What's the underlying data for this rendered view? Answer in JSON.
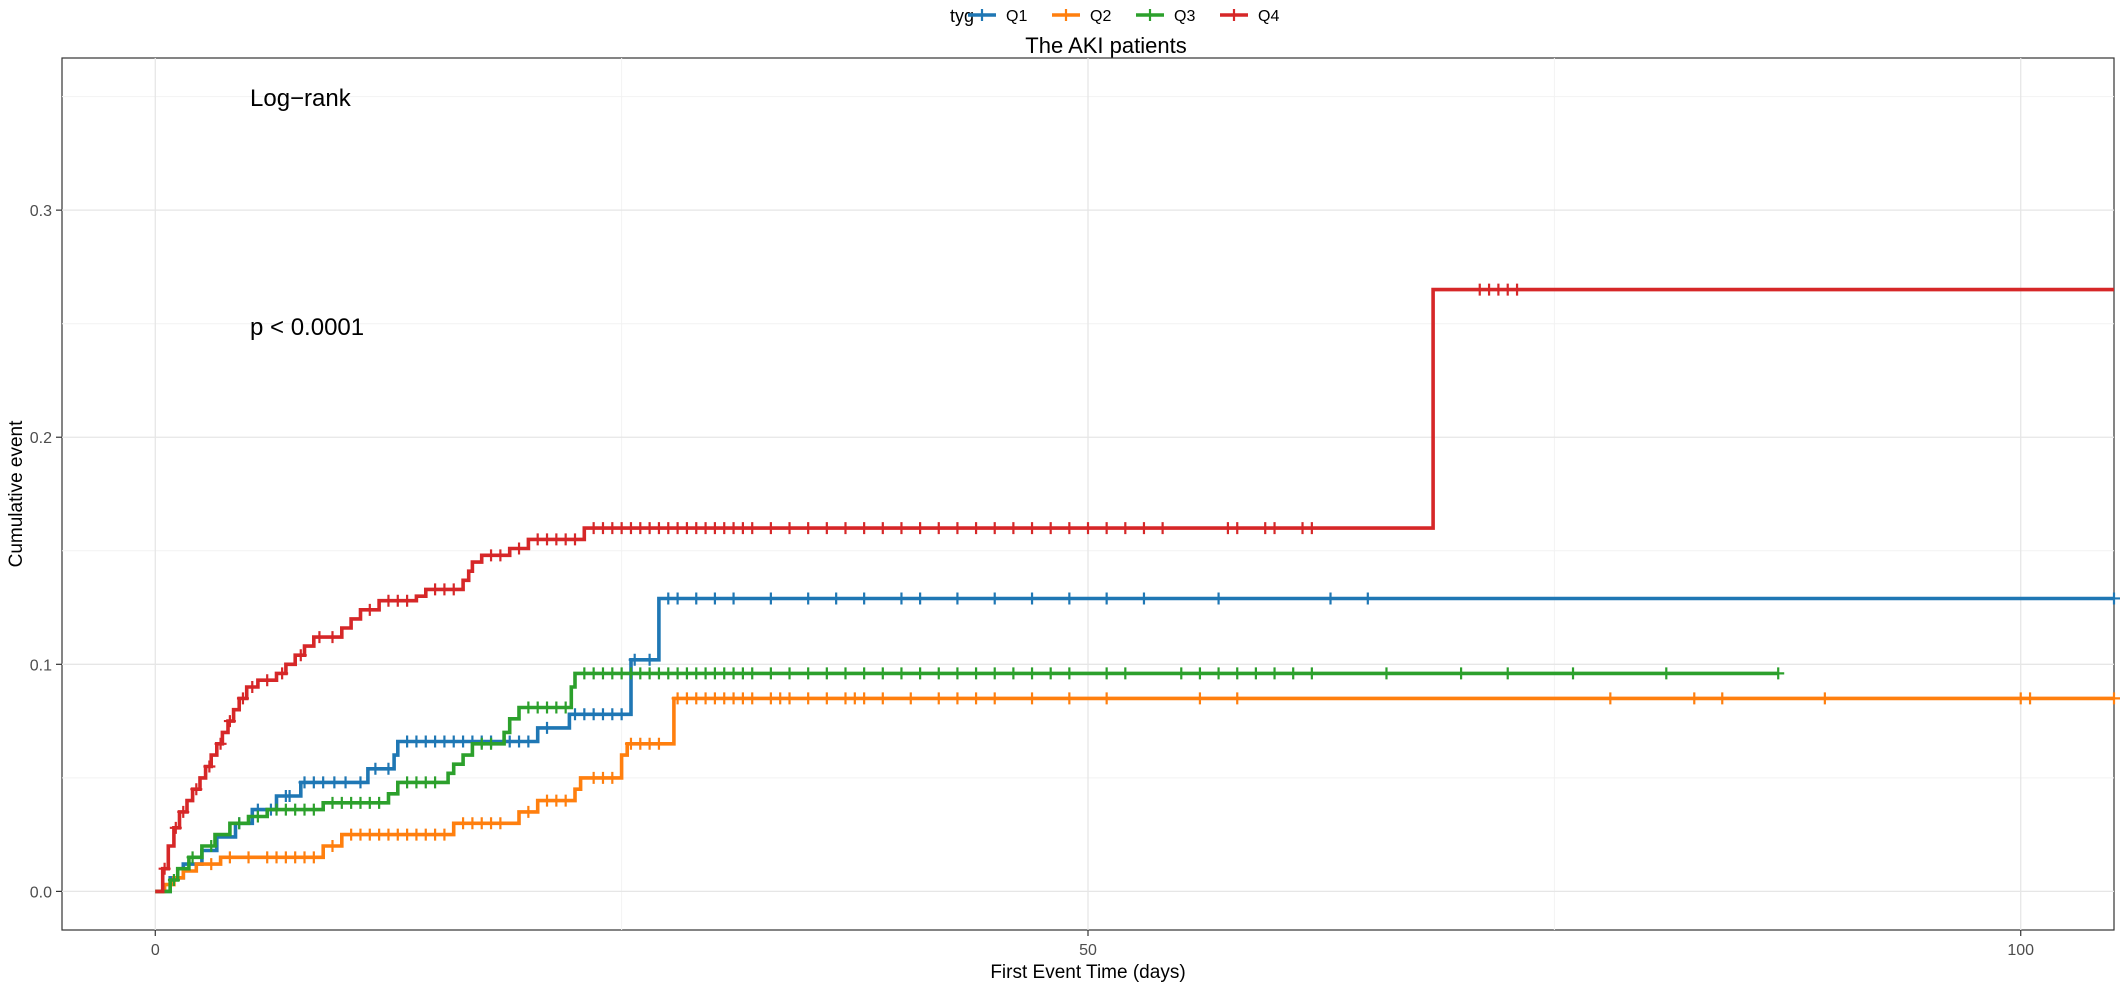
{
  "chart_data": {
    "type": "line",
    "title": "The AKI patients",
    "xlabel": "First Event Time (days)",
    "ylabel": "Cumulative event",
    "xlim": [
      -5,
      105
    ],
    "ylim": [
      -0.017,
      0.367
    ],
    "x_ticks": [
      0,
      50,
      100
    ],
    "x_tick_labels": [
      "0",
      "50",
      "100"
    ],
    "y_ticks": [
      0.0,
      0.1,
      0.2,
      0.3
    ],
    "y_tick_labels": [
      "0.0",
      "0.1",
      "0.2",
      "0.3"
    ],
    "grid": true,
    "legend": {
      "title": "tyg",
      "position": "top",
      "labels": [
        "Q1",
        "Q2",
        "Q3",
        "Q4"
      ]
    },
    "annotations": {
      "line1": "Log−rank",
      "line2": "p < 0.0001"
    },
    "series": [
      {
        "name": "Q1",
        "color": "#1F77B4",
        "steps": [
          [
            0,
            0
          ],
          [
            0.8,
            0.006
          ],
          [
            1.5,
            0.012
          ],
          [
            2.5,
            0.018
          ],
          [
            3.3,
            0.024
          ],
          [
            4.3,
            0.03
          ],
          [
            5.2,
            0.036
          ],
          [
            6.5,
            0.042
          ],
          [
            7.8,
            0.048
          ],
          [
            11.4,
            0.054
          ],
          [
            12.8,
            0.06
          ],
          [
            13.0,
            0.066
          ],
          [
            18.5,
            0.066
          ],
          [
            20.5,
            0.072
          ],
          [
            22.2,
            0.078
          ],
          [
            25.5,
            0.102
          ],
          [
            27.0,
            0.129
          ],
          [
            105,
            0.129
          ]
        ],
        "censored": [
          4.5,
          5.5,
          6.2,
          7.0,
          7.2,
          8.0,
          8.5,
          9.0,
          9.6,
          10.2,
          11.0,
          11.8,
          12.5,
          13.5,
          14.0,
          14.5,
          15.0,
          15.5,
          16.0,
          16.5,
          17.0,
          17.5,
          18.0,
          19.0,
          19.5,
          20.0,
          21.0,
          22.5,
          23.0,
          23.5,
          24.0,
          24.5,
          25.0,
          25.7,
          26.5,
          27.5,
          28.0,
          29.0,
          30.0,
          31.0,
          33.0,
          35.0,
          36.5,
          38.0,
          40.0,
          41.0,
          43.0,
          45.0,
          47.0,
          49.0,
          51.0,
          53.0,
          57.0,
          63.0,
          65.0,
          105
        ]
      },
      {
        "name": "Q2",
        "color": "#FF7F0E",
        "steps": [
          [
            0,
            0
          ],
          [
            0.5,
            0.003
          ],
          [
            1.0,
            0.006
          ],
          [
            1.5,
            0.009
          ],
          [
            2.2,
            0.012
          ],
          [
            3.5,
            0.015
          ],
          [
            9.0,
            0.02
          ],
          [
            10.0,
            0.025
          ],
          [
            16.0,
            0.03
          ],
          [
            19.5,
            0.035
          ],
          [
            20.5,
            0.04
          ],
          [
            22.5,
            0.045
          ],
          [
            22.8,
            0.05
          ],
          [
            25.0,
            0.06
          ],
          [
            25.3,
            0.065
          ],
          [
            27.8,
            0.085
          ],
          [
            105,
            0.085
          ]
        ],
        "censored": [
          3.0,
          4.0,
          5.0,
          6.0,
          6.5,
          7.0,
          7.5,
          8.0,
          8.5,
          9.5,
          10.5,
          11.0,
          11.5,
          12.0,
          12.5,
          13.0,
          13.5,
          14.0,
          14.5,
          15.0,
          15.5,
          16.5,
          17.0,
          17.5,
          18.0,
          18.5,
          20.0,
          21.0,
          21.5,
          22.0,
          23.5,
          24.0,
          24.5,
          25.5,
          26.0,
          26.5,
          27.0,
          28.0,
          28.5,
          29.0,
          29.5,
          30.0,
          30.5,
          31.0,
          31.5,
          32.0,
          33.0,
          33.5,
          34.0,
          35.0,
          36.0,
          37.0,
          37.5,
          38.0,
          39.0,
          40.5,
          42.0,
          43.0,
          44.0,
          45.0,
          47.0,
          49.0,
          51.0,
          56.0,
          58.0,
          78.0,
          82.5,
          84.0,
          89.5,
          100.0,
          100.5,
          105
        ]
      },
      {
        "name": "Q3",
        "color": "#2CA02C",
        "steps": [
          [
            0,
            0
          ],
          [
            0.8,
            0.005
          ],
          [
            1.2,
            0.01
          ],
          [
            1.8,
            0.015
          ],
          [
            2.5,
            0.02
          ],
          [
            3.2,
            0.025
          ],
          [
            4.0,
            0.03
          ],
          [
            5.0,
            0.033
          ],
          [
            6.0,
            0.036
          ],
          [
            9.0,
            0.039
          ],
          [
            12.5,
            0.043
          ],
          [
            13.0,
            0.048
          ],
          [
            15.7,
            0.052
          ],
          [
            16.0,
            0.056
          ],
          [
            16.5,
            0.06
          ],
          [
            17.0,
            0.065
          ],
          [
            18.7,
            0.07
          ],
          [
            19.0,
            0.076
          ],
          [
            19.5,
            0.081
          ],
          [
            22.3,
            0.09
          ],
          [
            22.5,
            0.096
          ],
          [
            87.0,
            0.096
          ]
        ],
        "censored": [
          1.0,
          2.0,
          3.0,
          4.5,
          5.5,
          6.5,
          7.0,
          7.5,
          8.0,
          8.5,
          9.5,
          10.0,
          10.5,
          11.0,
          11.5,
          12.0,
          13.5,
          14.0,
          14.5,
          15.0,
          17.5,
          18.0,
          20.0,
          20.5,
          21.0,
          21.5,
          22.0,
          23.0,
          23.5,
          24.0,
          24.5,
          25.0,
          25.5,
          26.0,
          26.5,
          27.0,
          27.5,
          28.0,
          28.5,
          29.0,
          29.5,
          30.0,
          30.5,
          31.0,
          31.5,
          32.0,
          33.0,
          34.0,
          35.0,
          36.0,
          37.0,
          38.0,
          39.0,
          40.0,
          41.0,
          42.0,
          43.0,
          44.0,
          45.0,
          46.0,
          47.0,
          48.0,
          49.0,
          51.0,
          52.0,
          55.0,
          56.0,
          57.0,
          58.0,
          59.0,
          60.0,
          61.0,
          62.0,
          66.0,
          70.0,
          72.5,
          76.0,
          81.0,
          87.0
        ]
      },
      {
        "name": "Q4",
        "color": "#D62728",
        "steps": [
          [
            0,
            0
          ],
          [
            0.4,
            0.01
          ],
          [
            0.7,
            0.02
          ],
          [
            1.0,
            0.028
          ],
          [
            1.3,
            0.035
          ],
          [
            1.7,
            0.04
          ],
          [
            2.0,
            0.045
          ],
          [
            2.4,
            0.05
          ],
          [
            2.7,
            0.055
          ],
          [
            3.0,
            0.06
          ],
          [
            3.3,
            0.065
          ],
          [
            3.6,
            0.07
          ],
          [
            3.9,
            0.075
          ],
          [
            4.2,
            0.08
          ],
          [
            4.5,
            0.085
          ],
          [
            4.9,
            0.09
          ],
          [
            5.5,
            0.093
          ],
          [
            6.5,
            0.096
          ],
          [
            7.0,
            0.1
          ],
          [
            7.5,
            0.104
          ],
          [
            8.0,
            0.108
          ],
          [
            8.5,
            0.112
          ],
          [
            10.0,
            0.116
          ],
          [
            10.5,
            0.12
          ],
          [
            11.0,
            0.124
          ],
          [
            12.0,
            0.128
          ],
          [
            14.0,
            0.13
          ],
          [
            14.5,
            0.133
          ],
          [
            16.5,
            0.137
          ],
          [
            16.8,
            0.141
          ],
          [
            17.0,
            0.145
          ],
          [
            17.5,
            0.148
          ],
          [
            19.0,
            0.151
          ],
          [
            20.0,
            0.155
          ],
          [
            23.0,
            0.16
          ],
          [
            68.5,
            0.16
          ],
          [
            68.5,
            0.265
          ],
          [
            105,
            0.265
          ]
        ],
        "censored": [
          0.5,
          1.1,
          1.5,
          2.2,
          2.9,
          3.5,
          4.0,
          4.7,
          5.2,
          6.0,
          6.8,
          7.8,
          8.8,
          9.5,
          11.5,
          12.5,
          13.0,
          13.5,
          15.0,
          15.5,
          16.0,
          18.0,
          18.5,
          19.5,
          20.5,
          21.0,
          21.5,
          22.0,
          22.5,
          23.5,
          24.0,
          24.5,
          25.0,
          25.5,
          26.0,
          26.5,
          27.0,
          27.5,
          28.0,
          28.5,
          29.0,
          29.5,
          30.0,
          30.5,
          31.0,
          31.5,
          32.0,
          33.0,
          34.0,
          35.0,
          36.0,
          37.0,
          38.0,
          39.0,
          40.0,
          41.0,
          42.0,
          43.0,
          44.0,
          45.0,
          46.0,
          47.0,
          48.0,
          49.0,
          50.0,
          51.0,
          52.0,
          53.0,
          54.0,
          57.5,
          58.0,
          59.5,
          60.0,
          61.5,
          62.0,
          71.0,
          71.5,
          72.0,
          72.5,
          73.0
        ]
      }
    ]
  }
}
